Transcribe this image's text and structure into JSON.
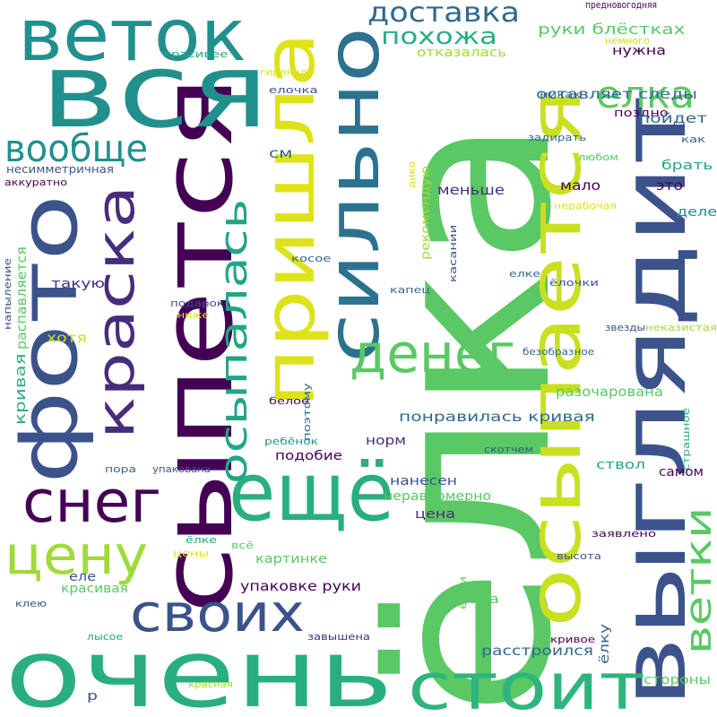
{
  "words": [
    {
      "text": "ёлка",
      "color": "#5ac864"
    },
    {
      "text": "сыпется",
      "color": "#440154"
    },
    {
      "text": "вся",
      "color": "#21908d"
    },
    {
      "text": "фото",
      "color": "#3b528b"
    },
    {
      "text": "очень",
      "color": "#29af7f"
    },
    {
      "text": "выглядит",
      "color": "#3b528b"
    },
    {
      "text": "осыпается",
      "color": "#c8e020"
    },
    {
      "text": "пришла",
      "color": "#dde318"
    },
    {
      "text": "веток",
      "color": "#21908d"
    },
    {
      "text": "ещё",
      "color": "#29af7f"
    },
    {
      "text": "сильно",
      "color": "#2c728e"
    },
    {
      "text": "стоит",
      "color": "#2fb47c"
    },
    {
      "text": "краска",
      "color": "#472d7b"
    },
    {
      "text": "снег",
      "color": "#440154"
    },
    {
      "text": "своих",
      "color": "#3b528b"
    },
    {
      "text": "цену",
      "color": "#a0da39"
    },
    {
      "text": "денег",
      "color": "#5ac864"
    },
    {
      "text": "осыпалась",
      "color": "#21a685"
    },
    {
      "text": "ветки",
      "color": "#5ac864"
    },
    {
      "text": "елка",
      "color": "#5ac864"
    },
    {
      "text": "вообще",
      "color": "#21908d"
    },
    {
      "text": "доставка",
      "color": "#31688e"
    },
    {
      "text": "похожа",
      "color": "#29af7f"
    },
    {
      "text": "поздно",
      "color": "#440154"
    },
    {
      "text": "предновогодняя",
      "color": "#440154"
    },
    {
      "text": "немного",
      "color": "#c8e020"
    },
    {
      "text": "руки блёстках",
      "color": "#5ac864"
    },
    {
      "text": "нужна",
      "color": "#440154"
    },
    {
      "text": "отказалась",
      "color": "#a0da39"
    },
    {
      "text": "оставляет следы",
      "color": "#31688e"
    },
    {
      "text": "красивее",
      "color": "#21a685"
    },
    {
      "text": "гирлянда",
      "color": "#dde318"
    },
    {
      "text": "елочка",
      "color": "#3b528b"
    },
    {
      "text": "никак",
      "color": "#31688e"
    },
    {
      "text": "пойдет",
      "color": "#31688e"
    },
    {
      "text": "задирать",
      "color": "#31688e"
    },
    {
      "text": "как",
      "color": "#31688e"
    },
    {
      "text": "любом",
      "color": "#5ac864"
    },
    {
      "text": "брать",
      "color": "#21a685"
    },
    {
      "text": "несимметричная",
      "color": "#3b528b"
    },
    {
      "text": "аккуратно",
      "color": "#440154"
    },
    {
      "text": "см",
      "color": "#31688e"
    },
    {
      "text": "дико",
      "color": "#dde318"
    },
    {
      "text": "рекомендую",
      "color": "#a0da39"
    },
    {
      "text": "меньше",
      "color": "#472d7b"
    },
    {
      "text": "мало",
      "color": "#440154"
    },
    {
      "text": "это",
      "color": "#440154"
    },
    {
      "text": "нерабочая",
      "color": "#dde318"
    },
    {
      "text": "деле",
      "color": "#21908d"
    },
    {
      "text": "касании",
      "color": "#3b528b"
    },
    {
      "text": "косое",
      "color": "#31688e"
    },
    {
      "text": "елке",
      "color": "#31688e"
    },
    {
      "text": "ёлочки",
      "color": "#3b528b"
    },
    {
      "text": "напыление",
      "color": "#3b528b"
    },
    {
      "text": "распавляется",
      "color": "#5ac864"
    },
    {
      "text": "такую",
      "color": "#472d7b"
    },
    {
      "text": "капец",
      "color": "#31688e"
    },
    {
      "text": "подарок",
      "color": "#3b528b"
    },
    {
      "text": "ниже",
      "color": "#dde318"
    },
    {
      "text": "хотя",
      "color": "#c8e020"
    },
    {
      "text": "кривая",
      "color": "#29af7f"
    },
    {
      "text": "звезды",
      "color": "#3b528b"
    },
    {
      "text": "неказистая",
      "color": "#a0da39"
    },
    {
      "text": "безобразное",
      "color": "#31688e"
    },
    {
      "text": "разочарована",
      "color": "#5ac864"
    },
    {
      "text": "белое",
      "color": "#440154"
    },
    {
      "text": "поэтому",
      "color": "#31688e"
    },
    {
      "text": "понравилась кривая",
      "color": "#31688e"
    },
    {
      "text": "страшное",
      "color": "#29af7f"
    },
    {
      "text": "ребёнок",
      "color": "#21908d"
    },
    {
      "text": "норм",
      "color": "#472d7b"
    },
    {
      "text": "отсыпается",
      "color": "#5ac864"
    },
    {
      "text": "подобие",
      "color": "#440154"
    },
    {
      "text": "скотчем",
      "color": "#3b528b"
    },
    {
      "text": "пора",
      "color": "#31688e"
    },
    {
      "text": "упакована",
      "color": "#3b528b"
    },
    {
      "text": "ствол",
      "color": "#21a685"
    },
    {
      "text": "самом",
      "color": "#440154"
    },
    {
      "text": "нанесен",
      "color": "#3b528b"
    },
    {
      "text": "неравномерно",
      "color": "#5ac864"
    },
    {
      "text": "цена",
      "color": "#472d7b"
    },
    {
      "text": "ёлке",
      "color": "#21a685"
    },
    {
      "text": "всё",
      "color": "#5ac864"
    },
    {
      "text": "заявлено",
      "color": "#440154"
    },
    {
      "text": "цены",
      "color": "#dde318"
    },
    {
      "text": "картинке",
      "color": "#5ac864"
    },
    {
      "text": "высота",
      "color": "#3b528b"
    },
    {
      "text": "еле",
      "color": "#3b528b"
    },
    {
      "text": "упаковке руки",
      "color": "#440154"
    },
    {
      "text": "ёлки",
      "color": "#5ac864"
    },
    {
      "text": "красивая",
      "color": "#5ac864"
    },
    {
      "text": "эта",
      "color": "#5ac864"
    },
    {
      "text": "клею",
      "color": "#3b528b"
    },
    {
      "text": "лысое",
      "color": "#21a685"
    },
    {
      "text": "завышена",
      "color": "#472d7b"
    },
    {
      "text": "ёлку",
      "color": "#31688e"
    },
    {
      "text": "кривое",
      "color": "#440154"
    },
    {
      "text": "расстроился",
      "color": "#31688e"
    },
    {
      "text": "р",
      "color": "#3b528b"
    },
    {
      "text": "красная",
      "color": "#a0da39"
    },
    {
      "text": "стороны",
      "color": "#5ac864"
    }
  ]
}
